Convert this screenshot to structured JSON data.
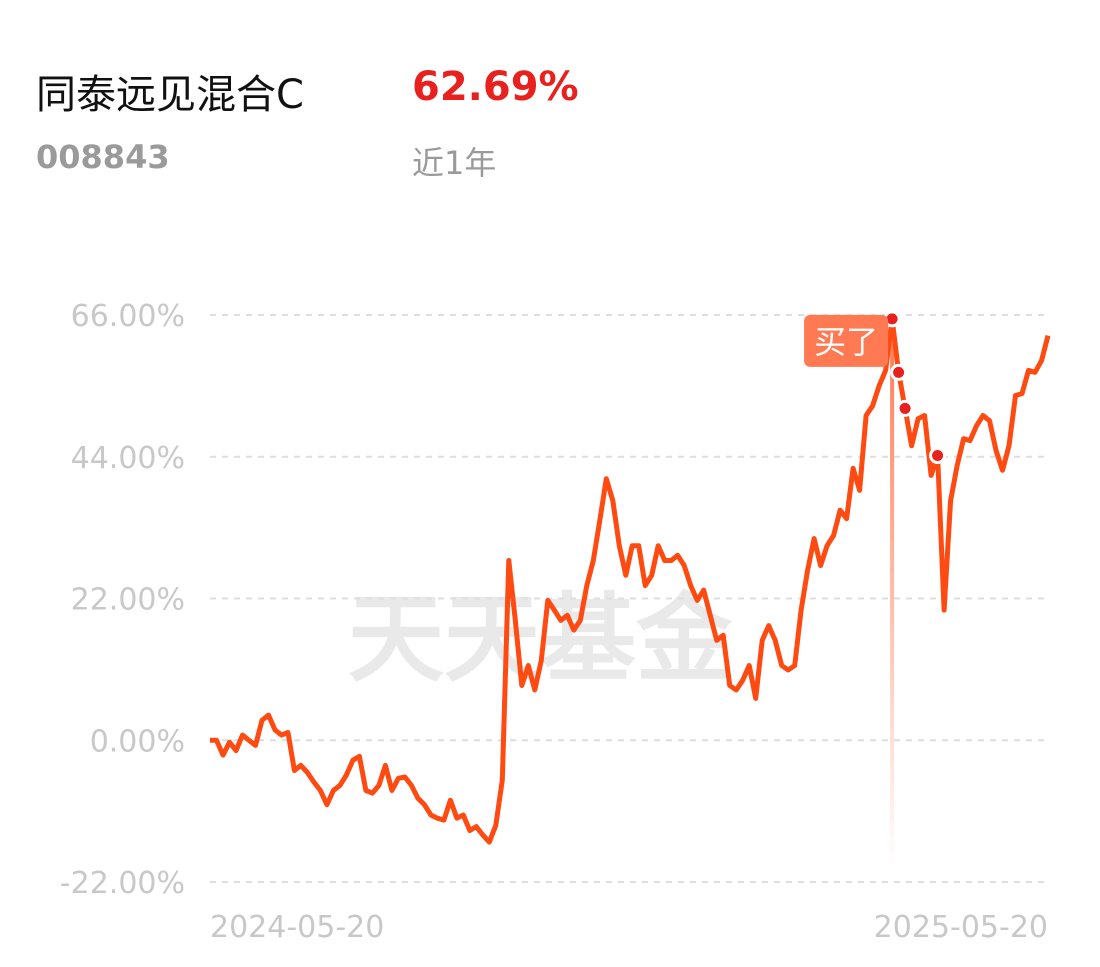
{
  "header": {
    "title": "同泰远见混合C",
    "return": "62.69%",
    "code": "008843",
    "period": "近1年"
  },
  "watermark": "天天基金",
  "chart_data": {
    "type": "line",
    "annotation": "买了",
    "categories": [
      "2024-05-20",
      null,
      null,
      null,
      null,
      null,
      null,
      null,
      null,
      null,
      null,
      null,
      null,
      null,
      null,
      null,
      null,
      null,
      null,
      null,
      null,
      null,
      null,
      null,
      null,
      null,
      null,
      null,
      null,
      null,
      null,
      null,
      null,
      null,
      null,
      null,
      null,
      null,
      null,
      null,
      null,
      null,
      null,
      null,
      null,
      null,
      null,
      null,
      null,
      null,
      null,
      null,
      null,
      null,
      null,
      null,
      null,
      null,
      null,
      null,
      null,
      null,
      null,
      null,
      null,
      null,
      null,
      null,
      null,
      null,
      null,
      null,
      null,
      null,
      null,
      null,
      null,
      null,
      null,
      null,
      null,
      null,
      null,
      null,
      null,
      null,
      null,
      null,
      null,
      null,
      null,
      null,
      null,
      null,
      null,
      null,
      null,
      null,
      null,
      null,
      null,
      null,
      null,
      null,
      null,
      null,
      null,
      null,
      null,
      null,
      null,
      null,
      null,
      null,
      null,
      null,
      null,
      null,
      null,
      null,
      null,
      null,
      null,
      null,
      null,
      null,
      null,
      null,
      null,
      "2025-05-20"
    ],
    "series": [
      {
        "color": "#ff4a12",
        "values": [
          0,
          0,
          -2.3,
          -0.3,
          -1.6,
          0.8,
          0,
          -0.8,
          3.1,
          3.9,
          1.6,
          0.8,
          1.2,
          -4.7,
          -3.9,
          -5,
          -6.5,
          -7.8,
          -10,
          -7.8,
          -7,
          -5.4,
          -3.1,
          -2.5,
          -7.8,
          -8.2,
          -7,
          -3.9,
          -7.8,
          -5.9,
          -5.7,
          -7,
          -9,
          -10,
          -11.6,
          -12.1,
          -12.4,
          -9.3,
          -12.1,
          -11.6,
          -14,
          -13.4,
          -14.7,
          -15.8,
          -13.2,
          -6.2,
          27.9,
          18.6,
          8.5,
          11.6,
          7.8,
          12.4,
          21.7,
          20.2,
          18.6,
          19.4,
          17.1,
          18.6,
          24,
          27.9,
          34.1,
          40.6,
          37.2,
          30.2,
          25.6,
          30.2,
          30.2,
          24,
          25.6,
          30.2,
          27.9,
          27.9,
          28.7,
          27.1,
          24,
          21.7,
          23.3,
          19.4,
          15.5,
          16.3,
          8.5,
          7.8,
          9.3,
          11.6,
          6.5,
          15.5,
          17.8,
          15.5,
          11.6,
          10.9,
          11.6,
          20.2,
          26.4,
          31.3,
          27.1,
          30.2,
          31.8,
          35.7,
          34.4,
          42.2,
          38.8,
          50.4,
          51.9,
          55,
          57.4,
          65.4,
          57.1,
          51.5,
          45.7,
          49.9,
          50.4,
          41.1,
          44.2,
          20.2,
          37.2,
          42.6,
          46.8,
          46.5,
          48.8,
          50.4,
          49.6,
          45,
          41.9,
          45.7,
          53.5,
          53.8,
          57.4,
          57.1,
          58.9,
          62.8
        ]
      }
    ],
    "ylim": [
      -22,
      66
    ],
    "yticks": [
      {
        "value": 66,
        "label": "66.00%"
      },
      {
        "value": 44,
        "label": "44.00%"
      },
      {
        "value": 22,
        "label": "22.00%"
      },
      {
        "value": 0,
        "label": "0.00%"
      },
      {
        "value": -22,
        "label": "-22.00%"
      }
    ],
    "grid": true
  }
}
